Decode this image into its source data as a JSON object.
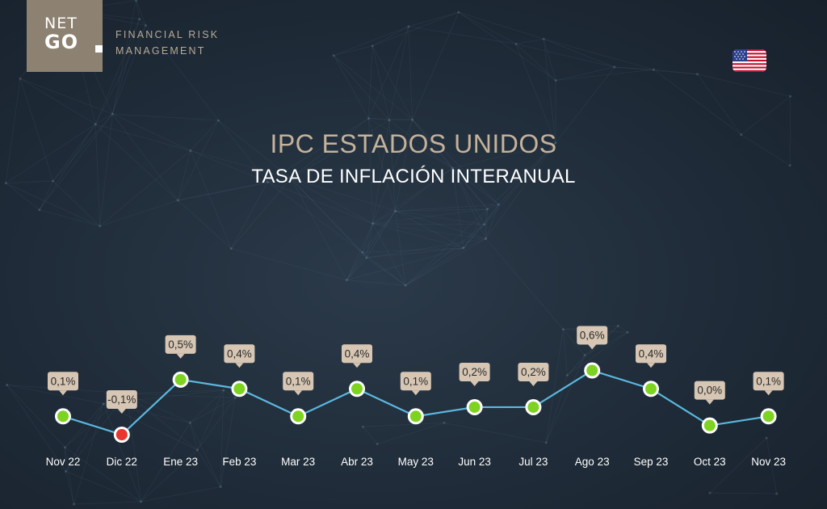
{
  "brand": {
    "logo_line1": "NET",
    "logo_line2": "GO",
    "company_line1": "FINANCIAL RISK",
    "company_line2": "MANAGEMENT",
    "logo_color": "#8d8171"
  },
  "flag_icon": "us-flag-icon",
  "colors": {
    "title": "#c4b29b",
    "line": "#5bb8de",
    "positive_marker": "#7ed321",
    "negative_marker": "#e8352e",
    "label_box": "#d6c6b3"
  },
  "chart_data": {
    "type": "line",
    "title": "IPC ESTADOS UNIDOS",
    "subtitle": "TASA DE INFLACIÓN INTERANUAL",
    "categories": [
      "Nov 22",
      "Dic 22",
      "Ene 23",
      "Feb 23",
      "Mar 23",
      "Abr 23",
      "May 23",
      "Jun 23",
      "Jul 23",
      "Ago 23",
      "Sep 23",
      "Oct 23",
      "Nov 23"
    ],
    "values": [
      0.1,
      -0.1,
      0.5,
      0.4,
      0.1,
      0.4,
      0.1,
      0.2,
      0.2,
      0.6,
      0.4,
      0.0,
      0.1
    ],
    "data_labels": [
      "0,1%",
      "-0,1%",
      "0,5%",
      "0,4%",
      "0,1%",
      "0,4%",
      "0,1%",
      "0,2%",
      "0,2%",
      "0,6%",
      "0,4%",
      "0,0%",
      "0,1%"
    ],
    "xlabel": "",
    "ylabel": "",
    "grid": false
  }
}
